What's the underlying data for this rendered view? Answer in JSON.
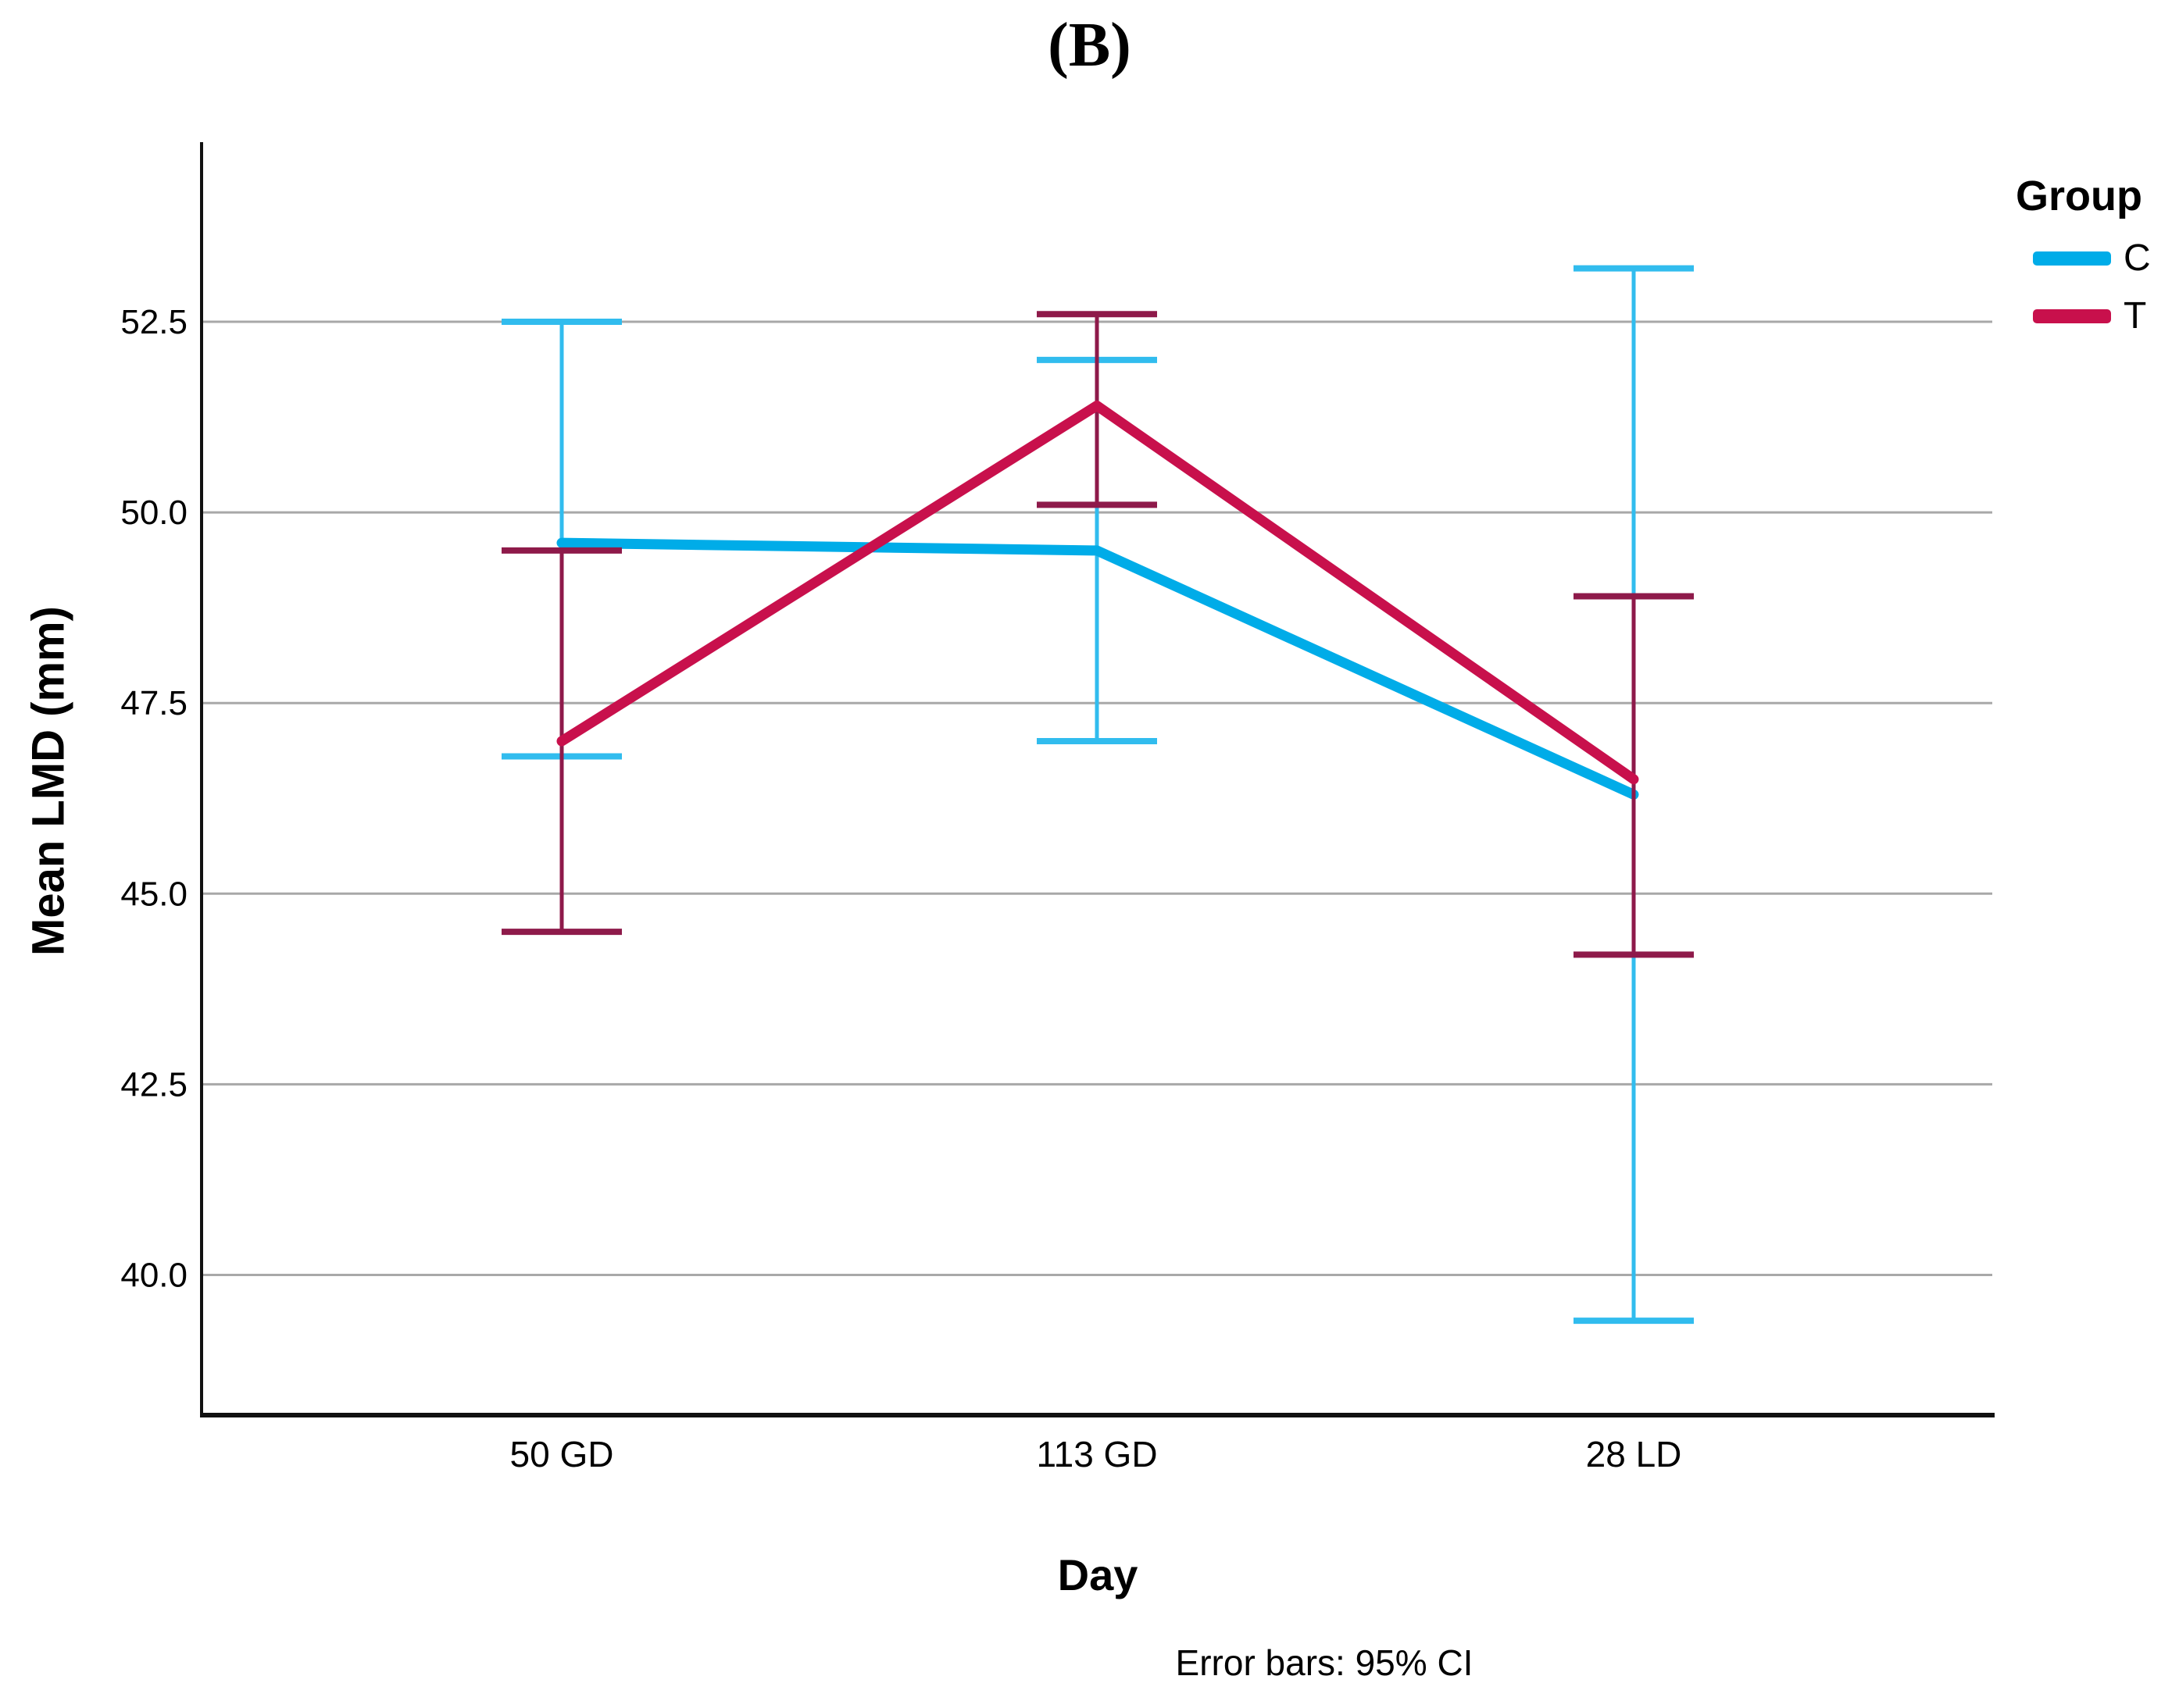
{
  "chart_data": {
    "type": "line",
    "title": "(B)",
    "xlabel": "Day",
    "ylabel": "Mean LMD (mm)",
    "footnote": "Error bars: 95% CI",
    "legend": {
      "title": "Group",
      "position": "top-right"
    },
    "categories": [
      "50 GD",
      "113 GD",
      "28 LD"
    ],
    "yticks": [
      40.0,
      42.5,
      45.0,
      47.5,
      50.0,
      52.5
    ],
    "ytick_labels": [
      "40.0",
      "42.5",
      "45.0",
      "47.5",
      "50.0",
      "52.5"
    ],
    "ylim": [
      38.2,
      54.9
    ],
    "grid": true,
    "error_bars": "95% CI",
    "series": [
      {
        "name": "C",
        "color": "#00ACE8",
        "errorbar_color": "#31BCEE",
        "values": [
          49.6,
          49.5,
          46.3
        ],
        "ci_low": [
          46.8,
          47.0,
          39.4
        ],
        "ci_high": [
          52.5,
          52.0,
          53.2
        ]
      },
      {
        "name": "T",
        "color": "#C8104C",
        "errorbar_color": "#8E1A4A",
        "values": [
          47.0,
          51.4,
          46.5
        ],
        "ci_low": [
          44.5,
          50.1,
          44.2
        ],
        "ci_high": [
          49.5,
          52.6,
          48.9
        ]
      }
    ]
  },
  "colors": {
    "gridline": "#A8A8A8",
    "axis": "#111111",
    "text": "#000000"
  }
}
